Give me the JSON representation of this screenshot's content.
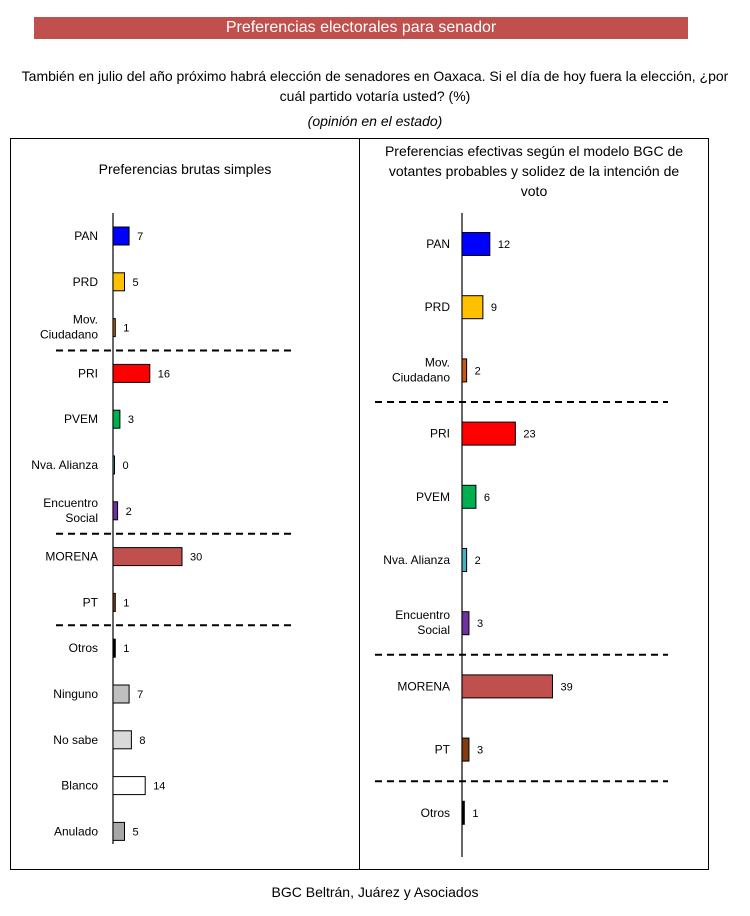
{
  "header": {
    "banner": "Preferencias electorales para senador",
    "question": "También en julio del año próximo habrá elección de senadores en Oaxaca. Si el día de hoy fuera la elección, ¿por cuál partido votaría usted? (%)",
    "scope": "(opinión en el estado)"
  },
  "footer": {
    "source": "BGC Beltrán, Juárez y Asociados"
  },
  "chart_data": [
    {
      "type": "bar",
      "orientation": "horizontal",
      "title": "Preferencias brutas simples",
      "categories": [
        "PAN",
        "PRD",
        "Mov. Ciudadano",
        "PRI",
        "PVEM",
        "Nva. Alianza",
        "Encuentro Social",
        "MORENA",
        "PT",
        "Otros",
        "Ninguno",
        "No sabe",
        "Blanco",
        "Anulado"
      ],
      "values": [
        7,
        5,
        1,
        16,
        3,
        0,
        2,
        30,
        1,
        1,
        7,
        8,
        14,
        5
      ],
      "colors": [
        "#0000ff",
        "#ffc000",
        "#c55a11",
        "#ff0000",
        "#00b050",
        "#4aacc6",
        "#7030a0",
        "#c0504d",
        "#843c0c",
        "#000000",
        "#bfbfbf",
        "#d9d9d9",
        "#ffffff",
        "#a6a6a6"
      ],
      "separators_after": [
        "Mov. Ciudadano",
        "Encuentro Social",
        "PT"
      ]
    },
    {
      "type": "bar",
      "orientation": "horizontal",
      "title": "Preferencias efectivas según el modelo BGC de votantes probables y solidez de la intención de voto",
      "categories": [
        "PAN",
        "PRD",
        "Mov. Ciudadano",
        "PRI",
        "PVEM",
        "Nva. Alianza",
        "Encuentro Social",
        "MORENA",
        "PT",
        "Otros"
      ],
      "values": [
        12,
        9,
        2,
        23,
        6,
        2,
        3,
        39,
        3,
        1
      ],
      "colors": [
        "#0000ff",
        "#ffc000",
        "#c55a11",
        "#ff0000",
        "#00b050",
        "#4aacc6",
        "#7030a0",
        "#c0504d",
        "#843c0c",
        "#000000"
      ],
      "separators_after": [
        "Mov. Ciudadano",
        "Encuentro Social",
        "PT"
      ]
    }
  ]
}
